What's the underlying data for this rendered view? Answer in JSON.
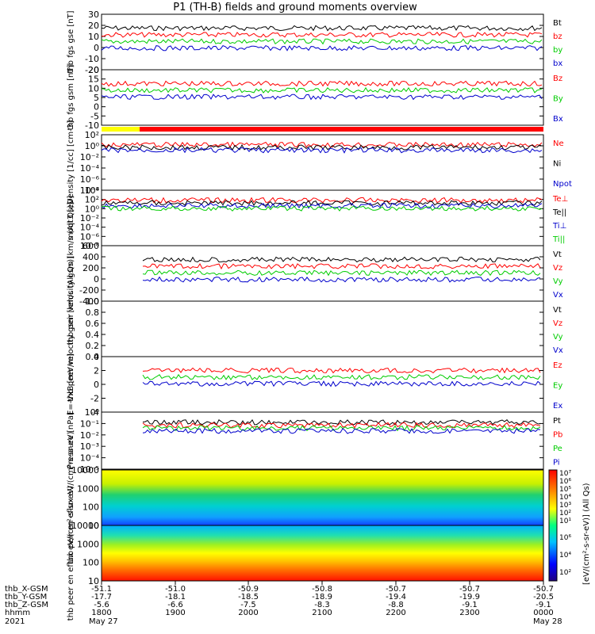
{
  "title": "P1 (TH-B) fields and ground moments overview",
  "colors": {
    "black": "#000000",
    "red": "#ff0000",
    "green": "#00cc00",
    "blue": "#0000cc",
    "yellow": "#ffff00"
  },
  "chart_data": [
    {
      "type": "line",
      "ylabel": "thb fgs gse [nT]",
      "ylim": [
        -20,
        30
      ],
      "ticks": [
        "30",
        "20",
        "10",
        "0",
        "-10",
        "-20"
      ],
      "series": [
        {
          "name": "Bt",
          "color": "black"
        },
        {
          "name": "bz",
          "color": "red"
        },
        {
          "name": "by",
          "color": "green"
        },
        {
          "name": "bx",
          "color": "blue"
        }
      ]
    },
    {
      "type": "line",
      "ylabel": "thb fgs gsm [nT]",
      "ylim": [
        -10,
        20
      ],
      "ticks": [
        "20",
        "15",
        "10",
        "5",
        "0",
        "-5",
        "-10"
      ],
      "series": [
        {
          "name": "Bz",
          "color": "red"
        },
        {
          "name": "By",
          "color": "green"
        },
        {
          "name": "Bx",
          "color": "blue"
        }
      ]
    },
    {
      "type": "line",
      "ylabel": "Density [1/cc] [cm-3]",
      "log": true,
      "ticks": [
        "10²",
        "10⁰",
        "10⁻²",
        "10⁻⁴",
        "10⁻⁶",
        "10⁻⁸"
      ],
      "series": [
        {
          "name": "Ne",
          "color": "red"
        },
        {
          "name": "Ni",
          "color": "black"
        },
        {
          "name": "Npot",
          "color": "blue"
        }
      ]
    },
    {
      "type": "line",
      "ylabel": "moqt3 [eV]",
      "log": true,
      "ticks": [
        "10⁴",
        "10²",
        "10⁰",
        "10⁻²",
        "10⁻⁴",
        "10⁻⁶",
        "10⁻⁸"
      ],
      "series": [
        {
          "name": "Te⊥",
          "color": "red"
        },
        {
          "name": "Te||",
          "color": "black"
        },
        {
          "name": "Ti⊥",
          "color": "blue"
        },
        {
          "name": "Ti||",
          "color": "green"
        }
      ]
    },
    {
      "type": "line",
      "ylabel": "thb peir velocity gsm [km/s (All Qs)]",
      "ylim": [
        -400,
        600
      ],
      "ticks": [
        "600",
        "400",
        "200",
        "0",
        "-200",
        "-400"
      ],
      "series": [
        {
          "name": "Vt",
          "color": "black"
        },
        {
          "name": "Vz",
          "color": "red"
        },
        {
          "name": "Vy",
          "color": "green"
        },
        {
          "name": "Vx",
          "color": "blue"
        }
      ]
    },
    {
      "type": "line",
      "ylabel": "thb peer velocity gsm [km/s (All Qs)]",
      "ylim": [
        0,
        1
      ],
      "ticks": [
        "1.0",
        "0.8",
        "0.6",
        "0.4",
        "0.2",
        "0.0"
      ],
      "series": [
        {
          "name": "Vt",
          "color": "black"
        },
        {
          "name": "Vz",
          "color": "red"
        },
        {
          "name": "Vy",
          "color": "green"
        },
        {
          "name": "Vx",
          "color": "blue"
        }
      ]
    },
    {
      "type": "line",
      "ylabel": "E=-VxB [mV/m]",
      "ylim": [
        -4,
        4
      ],
      "ticks": [
        "4",
        "2",
        "0",
        "-2",
        "-4"
      ],
      "series": [
        {
          "name": "Ez",
          "color": "red"
        },
        {
          "name": "Ey",
          "color": "green"
        },
        {
          "name": "Ex",
          "color": "blue"
        }
      ]
    },
    {
      "type": "line",
      "ylabel": "Pressure [nPa]",
      "log": true,
      "ticks": [
        "10⁰",
        "10⁻¹",
        "10⁻²",
        "10⁻³",
        "10⁻⁴",
        "10⁻⁵"
      ],
      "series": [
        {
          "name": "Pt",
          "color": "black"
        },
        {
          "name": "Pb",
          "color": "red"
        },
        {
          "name": "Pe",
          "color": "green"
        },
        {
          "name": "Pi",
          "color": "blue"
        }
      ]
    },
    {
      "type": "heatmap",
      "ylabel": "thb peir en eflux eV/(cm²-s-sr-eV)",
      "log": true,
      "ticks": [
        "10000",
        "1000",
        "100",
        "10"
      ]
    },
    {
      "type": "heatmap",
      "ylabel": "thb peer en eflux eV/(cm²-s-sr-eV)",
      "log": true,
      "ticks": [
        "10000",
        "1000",
        "100",
        "10"
      ]
    }
  ],
  "colorbar": {
    "label": "[eV/(cm²-s-sr-eV)] (All Qs)",
    "top_ticks": [
      "10⁷",
      "10⁶",
      "10⁵",
      "10⁴",
      "10³",
      "10²",
      "10¹"
    ],
    "bottom_ticks": [
      "10⁶",
      "10⁴",
      "10²"
    ]
  },
  "time_axis": {
    "rows": [
      {
        "label": "thb_X-GSM",
        "values": [
          "-51.1",
          "-51.0",
          "-50.9",
          "-50.8",
          "-50.7",
          "-50.7",
          "-50.7"
        ]
      },
      {
        "label": "thb_Y-GSM",
        "values": [
          "-17.7",
          "-18.1",
          "-18.5",
          "-18.9",
          "-19.4",
          "-19.9",
          "-20.5"
        ]
      },
      {
        "label": "thb_Z-GSM",
        "values": [
          "-5.6",
          "-6.6",
          "-7.5",
          "-8.3",
          "-8.8",
          "-9.1",
          "-9.1"
        ]
      },
      {
        "label": "hhmm",
        "values": [
          "1800",
          "1900",
          "2000",
          "2100",
          "2200",
          "2300",
          "0000"
        ]
      }
    ],
    "year": "2021",
    "date_start": "May 27",
    "date_end": "May 28"
  },
  "mode_bar": [
    {
      "color": "yellow",
      "from": 0,
      "to": 0.116
    },
    {
      "color": "red",
      "from": 0.116,
      "to": 1
    }
  ]
}
